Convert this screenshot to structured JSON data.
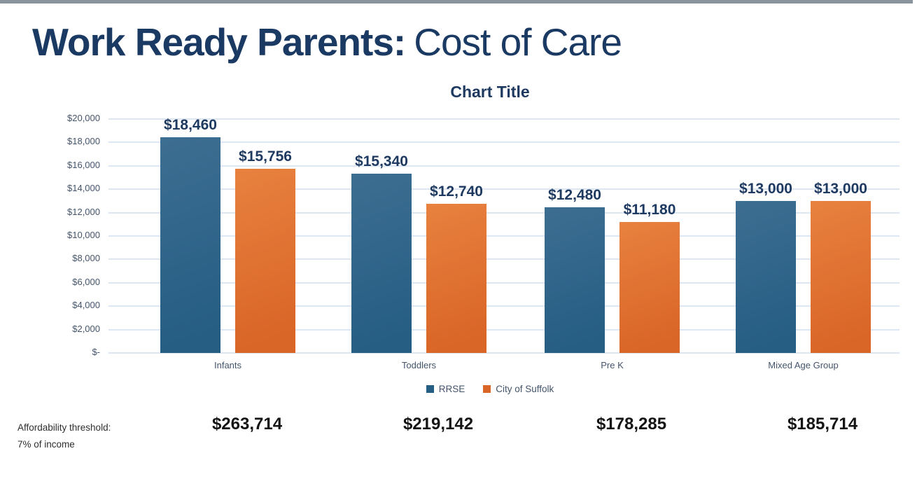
{
  "page": {
    "title_bold": "Work Ready Parents:",
    "title_regular": "Cost of Care"
  },
  "chart_data": {
    "type": "bar",
    "title": "Chart Title",
    "categories": [
      "Infants",
      "Toddlers",
      "Pre K",
      "Mixed Age Group"
    ],
    "series": [
      {
        "name": "RRSE",
        "color": "#265d83",
        "color_light": "#3d6e92",
        "values": [
          18460,
          15340,
          12480,
          13000
        ]
      },
      {
        "name": "City of Suffolk",
        "color": "#d96527",
        "color_light": "#e8813f",
        "values": [
          15756,
          12740,
          11180,
          13000
        ]
      }
    ],
    "data_labels": [
      [
        "$18,460",
        "$15,340",
        "$12,480",
        "$13,000"
      ],
      [
        "$15,756",
        "$12,740",
        "$11,180",
        "$13,000"
      ]
    ],
    "y_ticks": [
      "$20,000",
      "$18,000",
      "$16,000",
      "$14,000",
      "$12,000",
      "$10,000",
      "$8,000",
      "$6,000",
      "$4,000",
      "$2,000",
      "$-"
    ],
    "ylim": [
      0,
      20000
    ],
    "grid": true,
    "legend_position": "bottom"
  },
  "footer": {
    "label_line1": "Affordability threshold:",
    "label_line2": "7% of income",
    "values": [
      "$263,714",
      "$219,142",
      "$178,285",
      "$185,714"
    ]
  },
  "colors": {
    "title_navy": "#1b3a63",
    "axis_text": "#44546a",
    "gridline": "#dce7f3",
    "top_bar_gray": "#8a949c",
    "footer_value_black": "#141414"
  }
}
